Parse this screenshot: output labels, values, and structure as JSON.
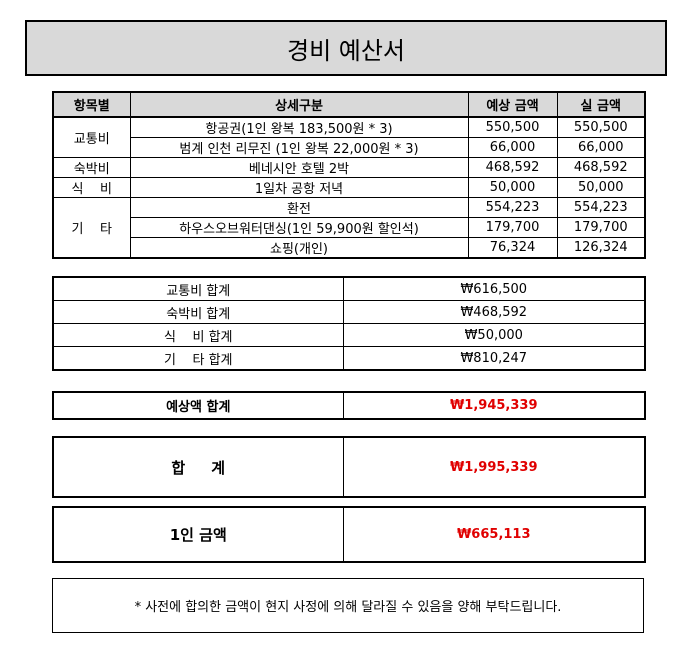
{
  "title": "경비 예산서",
  "detail": {
    "headers": [
      "항목별",
      "상세구분",
      "예상 금액",
      "실 금액"
    ],
    "groups": [
      {
        "category": "교통비",
        "rows": [
          {
            "detail": "항공권(1인 왕복 183,500원 * 3)",
            "estimate": "550,500",
            "actual": "550,500"
          },
          {
            "detail": "범계 인천 리무진 (1인 왕복 22,000원 * 3)",
            "estimate": "66,000",
            "actual": "66,000"
          }
        ]
      },
      {
        "category": "숙박비",
        "rows": [
          {
            "detail": "베네시안 호텔 2박",
            "estimate": "468,592",
            "actual": "468,592"
          }
        ]
      },
      {
        "category": "식    비",
        "rows": [
          {
            "detail": "1일차 공항 저녁",
            "estimate": "50,000",
            "actual": "50,000"
          }
        ]
      },
      {
        "category": "기    타",
        "rows": [
          {
            "detail": "환전",
            "estimate": "554,223",
            "actual": "554,223"
          },
          {
            "detail": "하우스오브워터댄싱(1인 59,900원 할인석)",
            "estimate": "179,700",
            "actual": "179,700"
          },
          {
            "detail": "쇼핑(개인)",
            "estimate": "76,324",
            "actual": "126,324"
          }
        ]
      }
    ]
  },
  "summary": [
    {
      "label": "교통비 합계",
      "value": "₩616,500"
    },
    {
      "label": "숙박비 합계",
      "value": "₩468,592"
    },
    {
      "label": "식    비 합계",
      "value": "₩50,000"
    },
    {
      "label": "기    타 합계",
      "value": "₩810,247"
    }
  ],
  "estimate_total": {
    "label": "예상액 합계",
    "value": "₩1,945,339"
  },
  "grand_total": {
    "label": "합     계",
    "value": "₩1,995,339"
  },
  "per_person": {
    "label": "1인 금액",
    "value": "₩665,113"
  },
  "note": "* 사전에 합의한 금액이 현지 사정에 의해 달라질 수 있음을 양해 부탁드립니다.",
  "colors": {
    "header_bg": "#d9d9d9",
    "highlight": "#e00000"
  }
}
